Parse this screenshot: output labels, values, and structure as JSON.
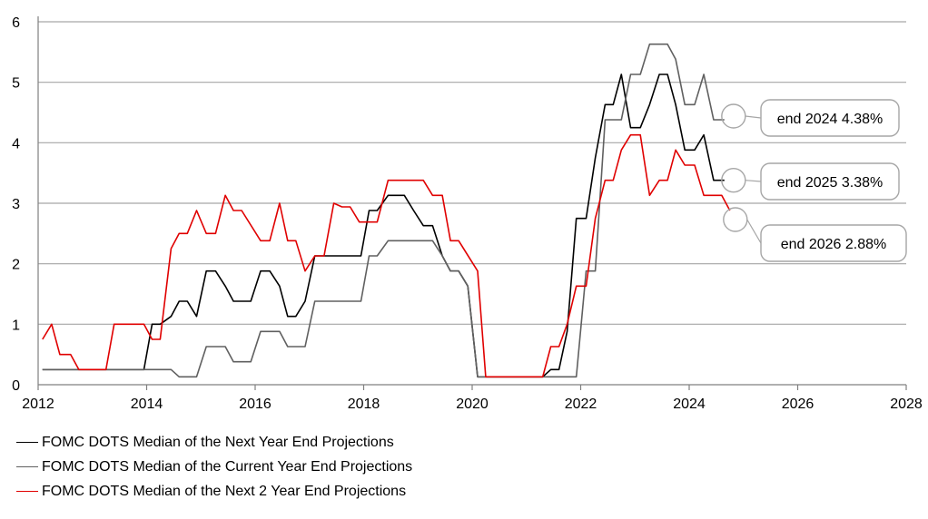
{
  "chart_data": {
    "type": "line",
    "title": "",
    "xlabel": "",
    "ylabel": "",
    "xlim": [
      2012,
      2028
    ],
    "ylim": [
      0,
      6
    ],
    "x_ticks": [
      2012,
      2014,
      2016,
      2018,
      2020,
      2022,
      2024,
      2026,
      2028
    ],
    "y_ticks": [
      0,
      1,
      2,
      3,
      4,
      5,
      6
    ],
    "grid": "horizontal",
    "legend_position": "bottom-left",
    "series": [
      {
        "name": "FOMC DOTS Median of the Next Year End Projections",
        "color": "#000000",
        "points": [
          [
            2012.08,
            0.25
          ],
          [
            2013.95,
            0.25
          ],
          [
            2014.1,
            1.0
          ],
          [
            2014.25,
            1.0
          ],
          [
            2014.45,
            1.13
          ],
          [
            2014.6,
            1.38
          ],
          [
            2014.75,
            1.38
          ],
          [
            2014.92,
            1.13
          ],
          [
            2015.1,
            1.88
          ],
          [
            2015.27,
            1.88
          ],
          [
            2015.45,
            1.63
          ],
          [
            2015.6,
            1.38
          ],
          [
            2015.92,
            1.38
          ],
          [
            2016.1,
            1.88
          ],
          [
            2016.27,
            1.88
          ],
          [
            2016.45,
            1.63
          ],
          [
            2016.6,
            1.13
          ],
          [
            2016.75,
            1.13
          ],
          [
            2016.92,
            1.38
          ],
          [
            2017.1,
            2.13
          ],
          [
            2017.95,
            2.13
          ],
          [
            2018.1,
            2.88
          ],
          [
            2018.25,
            2.88
          ],
          [
            2018.45,
            3.13
          ],
          [
            2018.75,
            3.13
          ],
          [
            2018.92,
            2.88
          ],
          [
            2019.1,
            2.63
          ],
          [
            2019.27,
            2.63
          ],
          [
            2019.45,
            2.13
          ],
          [
            2019.6,
            1.88
          ],
          [
            2019.75,
            1.88
          ],
          [
            2019.92,
            1.63
          ],
          [
            2020.1,
            0.13
          ],
          [
            2021.3,
            0.13
          ],
          [
            2021.45,
            0.25
          ],
          [
            2021.6,
            0.25
          ],
          [
            2021.75,
            0.88
          ],
          [
            2021.92,
            2.75
          ],
          [
            2022.1,
            2.75
          ],
          [
            2022.27,
            3.75
          ],
          [
            2022.45,
            4.63
          ],
          [
            2022.6,
            4.63
          ],
          [
            2022.75,
            5.13
          ],
          [
            2022.92,
            4.25
          ],
          [
            2023.1,
            4.25
          ],
          [
            2023.27,
            4.63
          ],
          [
            2023.45,
            5.13
          ],
          [
            2023.6,
            5.13
          ],
          [
            2023.75,
            4.63
          ],
          [
            2023.92,
            3.88
          ],
          [
            2024.1,
            3.88
          ],
          [
            2024.27,
            4.13
          ],
          [
            2024.45,
            3.38
          ],
          [
            2024.65,
            3.38
          ]
        ]
      },
      {
        "name": "FOMC DOTS Median of the Current Year End Projections",
        "color": "#606060",
        "points": [
          [
            2012.08,
            0.25
          ],
          [
            2014.45,
            0.25
          ],
          [
            2014.6,
            0.13
          ],
          [
            2014.92,
            0.13
          ],
          [
            2015.1,
            0.63
          ],
          [
            2015.45,
            0.63
          ],
          [
            2015.6,
            0.38
          ],
          [
            2015.92,
            0.38
          ],
          [
            2016.1,
            0.88
          ],
          [
            2016.45,
            0.88
          ],
          [
            2016.6,
            0.63
          ],
          [
            2016.92,
            0.63
          ],
          [
            2017.1,
            1.38
          ],
          [
            2017.95,
            1.38
          ],
          [
            2018.1,
            2.13
          ],
          [
            2018.25,
            2.13
          ],
          [
            2018.45,
            2.38
          ],
          [
            2019.27,
            2.38
          ],
          [
            2019.45,
            2.13
          ],
          [
            2019.6,
            1.88
          ],
          [
            2019.75,
            1.88
          ],
          [
            2019.92,
            1.63
          ],
          [
            2020.1,
            0.13
          ],
          [
            2021.92,
            0.13
          ],
          [
            2022.1,
            1.88
          ],
          [
            2022.27,
            1.88
          ],
          [
            2022.45,
            4.38
          ],
          [
            2022.75,
            4.38
          ],
          [
            2022.92,
            5.13
          ],
          [
            2023.1,
            5.13
          ],
          [
            2023.27,
            5.63
          ],
          [
            2023.6,
            5.63
          ],
          [
            2023.75,
            5.38
          ],
          [
            2023.92,
            4.63
          ],
          [
            2024.1,
            4.63
          ],
          [
            2024.27,
            5.13
          ],
          [
            2024.45,
            4.38
          ],
          [
            2024.65,
            4.38
          ]
        ]
      },
      {
        "name": "FOMC DOTS Median of the Next 2 Year End Projections",
        "color": "#e00000",
        "points": [
          [
            2012.08,
            0.75
          ],
          [
            2012.25,
            1.0
          ],
          [
            2012.4,
            0.5
          ],
          [
            2012.6,
            0.5
          ],
          [
            2012.75,
            0.25
          ],
          [
            2013.25,
            0.25
          ],
          [
            2013.4,
            1.0
          ],
          [
            2013.95,
            1.0
          ],
          [
            2014.1,
            0.75
          ],
          [
            2014.25,
            0.75
          ],
          [
            2014.45,
            2.25
          ],
          [
            2014.6,
            2.5
          ],
          [
            2014.75,
            2.5
          ],
          [
            2014.92,
            2.88
          ],
          [
            2015.1,
            2.5
          ],
          [
            2015.27,
            2.5
          ],
          [
            2015.45,
            3.13
          ],
          [
            2015.6,
            2.88
          ],
          [
            2015.75,
            2.88
          ],
          [
            2016.1,
            2.38
          ],
          [
            2016.27,
            2.38
          ],
          [
            2016.45,
            3.0
          ],
          [
            2016.6,
            2.38
          ],
          [
            2016.75,
            2.38
          ],
          [
            2016.92,
            1.88
          ],
          [
            2017.1,
            2.13
          ],
          [
            2017.27,
            2.13
          ],
          [
            2017.45,
            3.0
          ],
          [
            2017.6,
            2.94
          ],
          [
            2017.75,
            2.94
          ],
          [
            2017.92,
            2.69
          ],
          [
            2018.1,
            2.69
          ],
          [
            2018.25,
            2.69
          ],
          [
            2018.45,
            3.38
          ],
          [
            2019.1,
            3.38
          ],
          [
            2019.27,
            3.13
          ],
          [
            2019.45,
            3.13
          ],
          [
            2019.6,
            2.38
          ],
          [
            2019.75,
            2.38
          ],
          [
            2020.1,
            1.88
          ],
          [
            2020.25,
            0.13
          ],
          [
            2021.3,
            0.13
          ],
          [
            2021.45,
            0.63
          ],
          [
            2021.6,
            0.63
          ],
          [
            2021.75,
            1.0
          ],
          [
            2021.92,
            1.63
          ],
          [
            2022.1,
            1.63
          ],
          [
            2022.27,
            2.75
          ],
          [
            2022.45,
            3.38
          ],
          [
            2022.6,
            3.38
          ],
          [
            2022.75,
            3.88
          ],
          [
            2022.92,
            4.13
          ],
          [
            2023.1,
            4.13
          ],
          [
            2023.27,
            3.13
          ],
          [
            2023.45,
            3.38
          ],
          [
            2023.6,
            3.38
          ],
          [
            2023.75,
            3.88
          ],
          [
            2023.92,
            3.63
          ],
          [
            2024.1,
            3.63
          ],
          [
            2024.27,
            3.13
          ],
          [
            2024.45,
            3.13
          ],
          [
            2024.6,
            3.13
          ],
          [
            2024.75,
            2.88
          ]
        ]
      }
    ],
    "annotations": [
      {
        "text": "end 2024 4.38%",
        "x": 2024.65,
        "y": 4.38,
        "series_index": 1
      },
      {
        "text": "end 2025 3.38%",
        "x": 2024.65,
        "y": 3.38,
        "series_index": 0
      },
      {
        "text": "end 2026 2.88%",
        "x": 2024.75,
        "y": 2.88,
        "series_index": 2
      }
    ]
  }
}
